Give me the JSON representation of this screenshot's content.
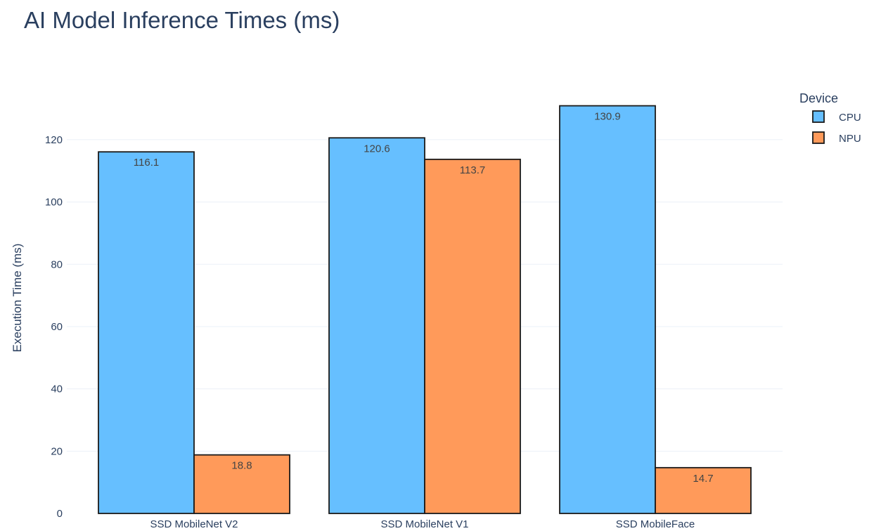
{
  "chart_data": {
    "type": "bar",
    "title": "AI Model Inference Times (ms)",
    "xlabel": "",
    "ylabel": "Execution Time (ms)",
    "categories": [
      "SSD MobileNet V2",
      "SSD MobileNet V1",
      "SSD MobileFace"
    ],
    "series": [
      {
        "name": "CPU",
        "values": [
          116.1,
          120.6,
          130.9
        ],
        "color": "#66bfff"
      },
      {
        "name": "NPU",
        "values": [
          18.8,
          113.7,
          14.7
        ],
        "color": "#ff9a5a"
      }
    ],
    "data_labels": [
      [
        "116.1",
        "120.6",
        "130.9"
      ],
      [
        "18.8",
        "113.7",
        "14.7"
      ]
    ],
    "y_ticks": [
      0,
      20,
      40,
      60,
      80,
      100,
      120
    ],
    "ylim": [
      0,
      137.8
    ],
    "grid": true,
    "legend": {
      "title": "Device",
      "placement": "top-right"
    },
    "bar_outline_color": "#1a1a1a",
    "grid_color": "#ebf0f8",
    "text_color": "#2a3f5f"
  }
}
